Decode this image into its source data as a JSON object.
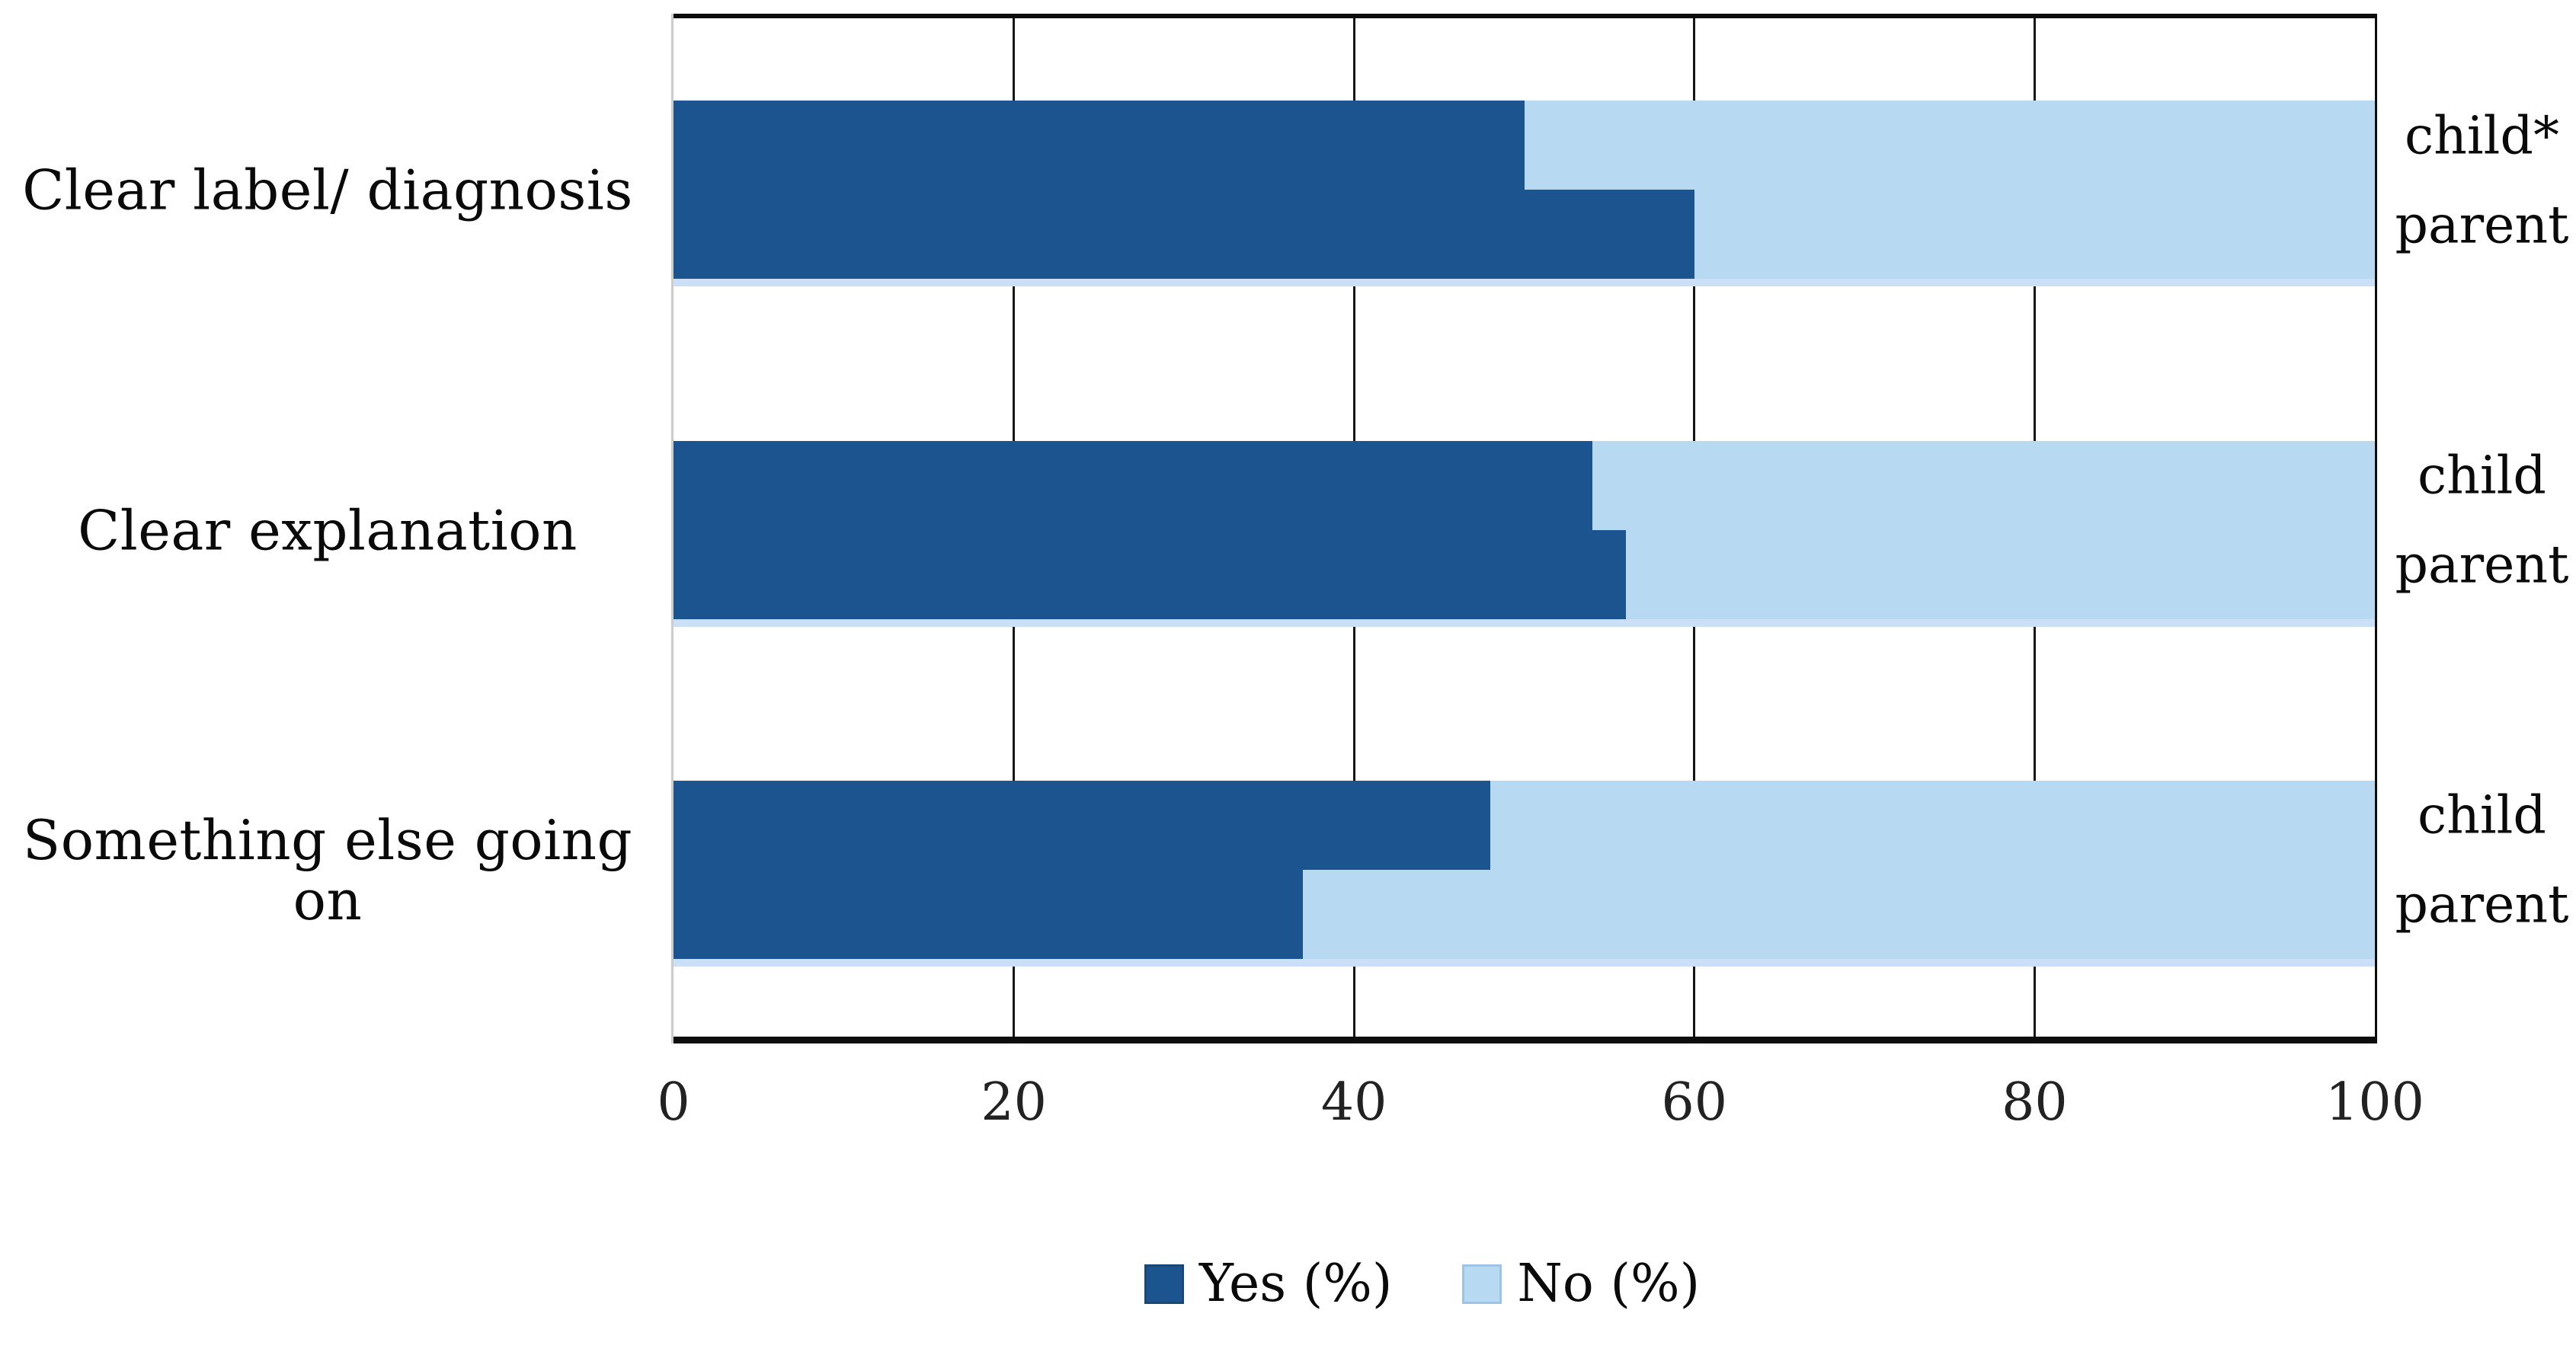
{
  "chart_data": {
    "type": "bar",
    "orientation": "horizontal-stacked",
    "title": "",
    "xlabel": "",
    "ylabel": "",
    "xlim": [
      0,
      100
    ],
    "xticks": [
      0,
      20,
      40,
      60,
      80,
      100
    ],
    "grid": "vertical-black-lines-every-20",
    "legend_position": "bottom-center",
    "colors": {
      "yes": "#1C5490",
      "no": "#B7D9F1",
      "pair_underline": "#CBDFF6",
      "gridline": "#161616",
      "frame": "#0d0d0d"
    },
    "legend": [
      {
        "label": "Yes (%)",
        "color": "#1C5490"
      },
      {
        "label": "No (%)",
        "color": "#B7D9F1"
      }
    ],
    "groups": [
      {
        "category": "Clear label/ diagnosis",
        "bars": [
          {
            "respondent": "child*",
            "yes": 50,
            "no": 50
          },
          {
            "respondent": "parent",
            "yes": 60,
            "no": 40
          }
        ]
      },
      {
        "category": "Clear explanation",
        "bars": [
          {
            "respondent": "child",
            "yes": 54,
            "no": 46
          },
          {
            "respondent": "parent",
            "yes": 56,
            "no": 44
          }
        ]
      },
      {
        "category": "Something else going on",
        "bars": [
          {
            "respondent": "child",
            "yes": 48,
            "no": 52
          },
          {
            "respondent": "parent",
            "yes": 37,
            "no": 63
          }
        ]
      }
    ]
  }
}
